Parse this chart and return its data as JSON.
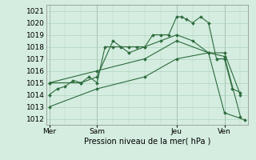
{
  "background_color": "#d4ede0",
  "grid_color": "#aed4be",
  "line_color": "#2d6b3c",
  "marker_color": "#2d6b3c",
  "xlabel": "Pression niveau de la mer( hPa )",
  "ylim": [
    1011.5,
    1021.5
  ],
  "xlim": [
    -0.2,
    12.5
  ],
  "yticks": [
    1012,
    1013,
    1014,
    1015,
    1016,
    1017,
    1018,
    1019,
    1020,
    1021
  ],
  "xtick_labels": [
    "Mer",
    "Sam",
    "Jeu",
    "Ven"
  ],
  "xtick_positions": [
    0,
    3,
    8,
    11
  ],
  "vline_positions": [
    0,
    3,
    8,
    11
  ],
  "series": [
    {
      "x": [
        0,
        0.5,
        1,
        1.5,
        2,
        2.5,
        3,
        3.5,
        4,
        4.5,
        5,
        5.5,
        6,
        6.5,
        7,
        7.5,
        8,
        8.3,
        8.6,
        9,
        9.5,
        10,
        10.5,
        11,
        11.5,
        12
      ],
      "y": [
        1014,
        1014.5,
        1014.7,
        1015.2,
        1015,
        1015.5,
        1015,
        1018,
        1018,
        1018,
        1018,
        1018,
        1018,
        1019,
        1019,
        1019,
        1020.5,
        1020.5,
        1020.3,
        1020,
        1020.5,
        1020,
        1017,
        1017,
        1014.5,
        1014.2
      ]
    },
    {
      "x": [
        0,
        2,
        3,
        4,
        5,
        6,
        7,
        8,
        9,
        10,
        11,
        12
      ],
      "y": [
        1015,
        1015,
        1015.5,
        1018.5,
        1017.5,
        1018,
        1018.5,
        1019,
        1018.5,
        1017.5,
        1017.5,
        1014
      ]
    },
    {
      "x": [
        0,
        3,
        6,
        8,
        10,
        11,
        12
      ],
      "y": [
        1015,
        1016,
        1017,
        1018.5,
        1017.5,
        1017.2,
        1012.2
      ]
    },
    {
      "x": [
        0,
        3,
        6,
        8,
        10,
        11,
        12.3
      ],
      "y": [
        1013,
        1014.5,
        1015.5,
        1017,
        1017.5,
        1012.5,
        1011.9
      ]
    }
  ]
}
